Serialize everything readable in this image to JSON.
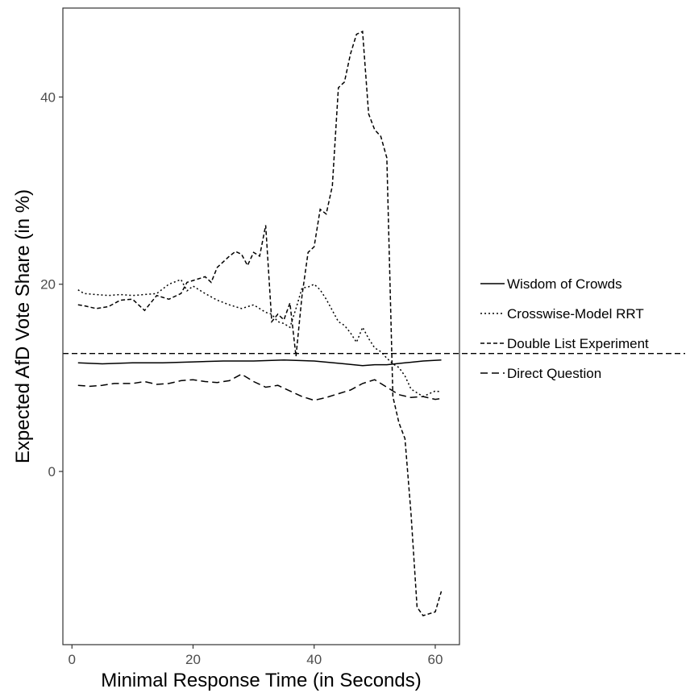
{
  "chart_data": {
    "type": "line",
    "xlabel": "Minimal Response Time (in Seconds)",
    "ylabel": "Expected AfD Vote Share (in %)",
    "xlim": [
      -1.5,
      64
    ],
    "ylim": [
      -18.5,
      49.5
    ],
    "x_ticks": [
      0,
      20,
      40,
      60
    ],
    "y_ticks": [
      0,
      20,
      40
    ],
    "grid": false,
    "legend_position": "right",
    "reference_line": {
      "y": 12.6,
      "style": "dashed"
    },
    "series": [
      {
        "name": "Wisdom of Crowds",
        "style": "solid",
        "x": [
          1,
          5,
          10,
          15,
          20,
          25,
          30,
          35,
          40,
          45,
          48,
          50,
          52,
          55,
          58,
          61
        ],
        "y": [
          11.6,
          11.5,
          11.6,
          11.6,
          11.7,
          11.8,
          11.8,
          11.9,
          11.8,
          11.5,
          11.3,
          11.4,
          11.4,
          11.6,
          11.8,
          11.9
        ]
      },
      {
        "name": "Crosswise-Model RRT",
        "style": "dotted",
        "x": [
          1,
          2,
          4,
          6,
          8,
          10,
          12,
          14,
          16,
          18,
          19,
          20,
          22,
          24,
          26,
          28,
          30,
          32,
          33,
          34,
          35,
          36,
          37,
          38,
          39,
          40,
          41,
          42,
          43,
          44,
          45,
          46,
          47,
          48,
          49,
          50,
          51,
          52,
          53,
          54,
          55,
          56,
          57,
          58,
          59,
          60,
          61
        ],
        "y": [
          19.4,
          19.0,
          18.9,
          18.8,
          18.9,
          18.8,
          18.9,
          19.0,
          20.0,
          20.5,
          19.3,
          19.8,
          19.0,
          18.3,
          17.8,
          17.4,
          17.8,
          17.0,
          16.8,
          16.0,
          15.8,
          15.4,
          17.4,
          19.6,
          19.7,
          20.0,
          19.4,
          18.4,
          17.2,
          16.0,
          15.6,
          14.8,
          13.8,
          15.4,
          14.2,
          13.2,
          12.8,
          12.1,
          11.5,
          11.1,
          10.2,
          8.8,
          8.4,
          8.0,
          8.3,
          8.6,
          8.5
        ]
      },
      {
        "name": "Double List Experiment",
        "style": "dashed",
        "x": [
          1,
          2,
          4,
          6,
          8,
          10,
          12,
          14,
          16,
          18,
          19,
          20,
          22,
          23,
          24,
          26,
          27,
          28,
          29,
          30,
          31,
          32,
          33,
          34,
          35,
          36,
          37,
          38,
          39,
          40,
          41,
          42,
          43,
          44,
          45,
          46,
          47,
          48,
          49,
          50,
          51,
          52,
          53,
          54,
          55,
          56,
          57,
          58,
          59,
          60,
          61
        ],
        "y": [
          17.8,
          17.7,
          17.4,
          17.6,
          18.3,
          18.4,
          17.2,
          18.8,
          18.4,
          19.0,
          20.2,
          20.4,
          20.8,
          20.2,
          21.8,
          23.0,
          23.5,
          23.2,
          22.0,
          23.4,
          23.0,
          26.3,
          16.0,
          16.8,
          16.2,
          18.0,
          12.3,
          18.8,
          23.4,
          24.0,
          28.0,
          27.5,
          30.5,
          41.0,
          41.6,
          44.6,
          46.7,
          47.0,
          38.2,
          36.5,
          35.8,
          33.5,
          8.0,
          5.2,
          3.5,
          -4.5,
          -14.5,
          -15.4,
          -15.2,
          -15.0,
          -12.8
        ]
      },
      {
        "name": "Direct Question",
        "style": "longdash",
        "x": [
          1,
          3,
          5,
          7,
          10,
          12,
          14,
          16,
          18,
          20,
          22,
          24,
          26,
          28,
          30,
          32,
          34,
          36,
          38,
          40,
          42,
          44,
          46,
          48,
          50,
          52,
          54,
          56,
          58,
          60,
          61
        ],
        "y": [
          9.2,
          9.1,
          9.2,
          9.4,
          9.4,
          9.6,
          9.3,
          9.4,
          9.7,
          9.8,
          9.6,
          9.5,
          9.7,
          10.4,
          9.6,
          9.0,
          9.2,
          8.6,
          8.0,
          7.6,
          7.9,
          8.3,
          8.7,
          9.4,
          9.8,
          9.0,
          8.2,
          7.9,
          8.0,
          7.7,
          7.8
        ]
      }
    ]
  }
}
